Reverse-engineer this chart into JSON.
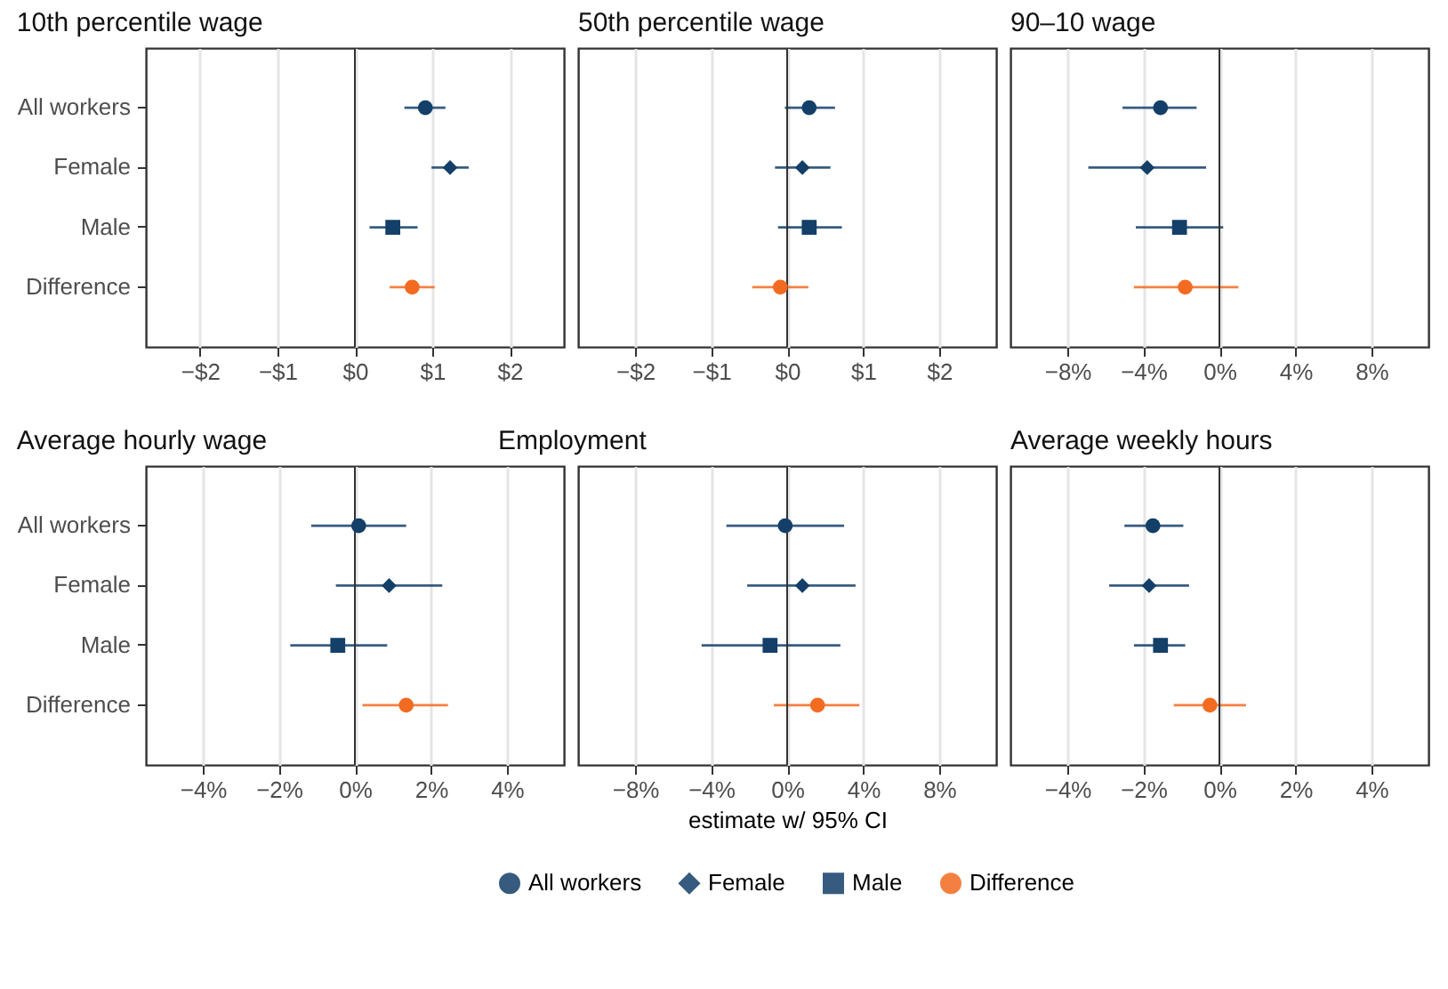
{
  "chart_data": [
    {
      "type": "scatter",
      "orientation": "horizontal",
      "title": "10th percentile wage",
      "categories": [
        "All workers",
        "Female",
        "Male",
        "Difference"
      ],
      "xlim": [
        -2.7,
        2.7
      ],
      "xticks": [
        {
          "value": -2,
          "label": "−$2"
        },
        {
          "value": -1,
          "label": "−$1"
        },
        {
          "value": 0,
          "label": "$0"
        },
        {
          "value": 1,
          "label": "$1"
        },
        {
          "value": 2,
          "label": "$2"
        }
      ],
      "grid": "x",
      "ref_lines": [
        {
          "axis": "x",
          "value": 0
        }
      ],
      "series": [
        {
          "color": "#133f68",
          "marker": "circle",
          "values": [
            0.91,
            null,
            null,
            null
          ],
          "errors": [
            [
              0.64,
              1.17
            ],
            null,
            null,
            null
          ]
        },
        {
          "color": "#133f68",
          "marker": "diamond",
          "values": [
            null,
            1.23,
            null,
            null
          ],
          "errors": [
            null,
            [
              0.99,
              1.47
            ],
            null,
            null
          ]
        },
        {
          "color": "#133f68",
          "marker": "square",
          "values": [
            null,
            null,
            0.49,
            null
          ],
          "errors": [
            null,
            null,
            [
              0.19,
              0.81
            ],
            null
          ]
        },
        {
          "color": "#f26b21",
          "marker": "circle",
          "values": [
            null,
            null,
            null,
            0.74
          ],
          "errors": [
            null,
            null,
            null,
            [
              0.45,
              1.03
            ]
          ]
        }
      ]
    },
    {
      "type": "scatter",
      "orientation": "horizontal",
      "title": "50th percentile wage",
      "categories": [
        null,
        null,
        null,
        null
      ],
      "xlim": [
        -2.75,
        2.75
      ],
      "xticks": [
        {
          "value": -2,
          "label": "−$2"
        },
        {
          "value": -1,
          "label": "−$1"
        },
        {
          "value": 0,
          "label": "$0"
        },
        {
          "value": 1,
          "label": "$1"
        },
        {
          "value": 2,
          "label": "$2"
        }
      ],
      "grid": "x",
      "tick_labels": "x",
      "ref_lines": [
        {
          "axis": "x",
          "value": 0
        }
      ],
      "series": [
        {
          "color": "#133f68",
          "marker": "circle",
          "values": [
            0.29,
            null,
            null,
            null
          ],
          "errors": [
            [
              -0.03,
              0.63
            ],
            null,
            null,
            null
          ]
        },
        {
          "color": "#133f68",
          "marker": "diamond",
          "values": [
            null,
            0.2,
            null,
            null
          ],
          "errors": [
            null,
            [
              -0.16,
              0.57
            ],
            null,
            null
          ]
        },
        {
          "color": "#133f68",
          "marker": "square",
          "values": [
            null,
            null,
            0.29,
            null
          ],
          "errors": [
            null,
            null,
            [
              -0.12,
              0.72
            ],
            null
          ]
        },
        {
          "color": "#f26b21",
          "marker": "circle",
          "values": [
            null,
            null,
            null,
            -0.09
          ],
          "errors": [
            null,
            null,
            null,
            [
              -0.46,
              0.28
            ]
          ]
        }
      ]
    },
    {
      "type": "scatter",
      "orientation": "horizontal",
      "title": "90–10 wage",
      "categories": [
        null,
        null,
        null,
        null
      ],
      "xlim": [
        -11,
        11
      ],
      "xticks": [
        {
          "value": -8,
          "label": "−8%"
        },
        {
          "value": -4,
          "label": "−4%"
        },
        {
          "value": 0,
          "label": "0%"
        },
        {
          "value": 4,
          "label": "4%"
        },
        {
          "value": 8,
          "label": "8%"
        }
      ],
      "grid": "x",
      "tick_labels": "x",
      "ref_lines": [
        {
          "axis": "x",
          "value": 0
        }
      ],
      "series": [
        {
          "color": "#133f68",
          "marker": "circle",
          "values": [
            -3.1,
            null,
            null,
            null
          ],
          "errors": [
            [
              -5.1,
              -1.2
            ],
            null,
            null,
            null
          ]
        },
        {
          "color": "#133f68",
          "marker": "diamond",
          "values": [
            null,
            -3.8,
            null,
            null
          ],
          "errors": [
            null,
            [
              -6.9,
              -0.7
            ],
            null,
            null
          ]
        },
        {
          "color": "#133f68",
          "marker": "square",
          "values": [
            null,
            null,
            -2.1,
            null
          ],
          "errors": [
            null,
            null,
            [
              -4.4,
              0.2
            ],
            null
          ]
        },
        {
          "color": "#f26b21",
          "marker": "circle",
          "values": [
            null,
            null,
            null,
            -1.8
          ],
          "errors": [
            null,
            null,
            null,
            [
              -4.5,
              1.0
            ]
          ]
        }
      ]
    },
    {
      "type": "scatter",
      "orientation": "horizontal",
      "title": "Average hourly wage",
      "categories": [
        "All workers",
        "Female",
        "Male",
        "Difference"
      ],
      "xlim": [
        -5.5,
        5.5
      ],
      "xticks": [
        {
          "value": -4,
          "label": "−4%"
        },
        {
          "value": -2,
          "label": "−2%"
        },
        {
          "value": 0,
          "label": "0%"
        },
        {
          "value": 2,
          "label": "2%"
        },
        {
          "value": 4,
          "label": "4%"
        }
      ],
      "grid": "x",
      "ref_lines": [
        {
          "axis": "x",
          "value": 0
        }
      ],
      "series": [
        {
          "color": "#133f68",
          "marker": "circle",
          "values": [
            0.1,
            null,
            null,
            null
          ],
          "errors": [
            [
              -1.15,
              1.35
            ],
            null,
            null,
            null
          ]
        },
        {
          "color": "#133f68",
          "marker": "diamond",
          "values": [
            null,
            0.9,
            null,
            null
          ],
          "errors": [
            null,
            [
              -0.5,
              2.3
            ],
            null,
            null
          ]
        },
        {
          "color": "#133f68",
          "marker": "square",
          "values": [
            null,
            null,
            -0.45,
            null
          ],
          "errors": [
            null,
            null,
            [
              -1.7,
              0.85
            ],
            null
          ]
        },
        {
          "color": "#f26b21",
          "marker": "circle",
          "values": [
            null,
            null,
            null,
            1.35
          ],
          "errors": [
            null,
            null,
            null,
            [
              0.2,
              2.45
            ]
          ]
        }
      ]
    },
    {
      "type": "scatter",
      "orientation": "horizontal",
      "title": "Employment",
      "xlabel": "estimate w/ 95% CI",
      "categories": [
        null,
        null,
        null,
        null
      ],
      "xlim": [
        -11,
        11
      ],
      "xticks": [
        {
          "value": -8,
          "label": "−8%"
        },
        {
          "value": -4,
          "label": "−4%"
        },
        {
          "value": 0,
          "label": "0%"
        },
        {
          "value": 4,
          "label": "4%"
        },
        {
          "value": 8,
          "label": "8%"
        }
      ],
      "grid": "x",
      "legend": "bottom",
      "tick_labels": "x",
      "ref_lines": [
        {
          "axis": "x",
          "value": 0
        }
      ],
      "series": [
        {
          "name": "All workers",
          "color": "#133f68",
          "marker": "circle",
          "values": [
            -0.1,
            null,
            null,
            null
          ],
          "errors": [
            [
              -3.2,
              3.0
            ],
            null,
            null,
            null
          ]
        },
        {
          "name": "Female",
          "color": "#133f68",
          "marker": "diamond",
          "values": [
            null,
            0.8,
            null,
            null
          ],
          "errors": [
            null,
            [
              -2.1,
              3.6
            ],
            null,
            null
          ]
        },
        {
          "name": "Male",
          "color": "#133f68",
          "marker": "square",
          "values": [
            null,
            null,
            -0.9,
            null
          ],
          "errors": [
            null,
            null,
            [
              -4.5,
              2.8
            ],
            null
          ]
        },
        {
          "name": "Difference",
          "color": "#f26b21",
          "marker": "circle",
          "values": [
            null,
            null,
            null,
            1.6
          ],
          "errors": [
            null,
            null,
            null,
            [
              -0.7,
              3.8
            ]
          ]
        }
      ]
    },
    {
      "type": "scatter",
      "orientation": "horizontal",
      "title": "Average weekly hours",
      "categories": [
        null,
        null,
        null,
        null
      ],
      "xlim": [
        -5.5,
        5.5
      ],
      "xticks": [
        {
          "value": -4,
          "label": "−4%"
        },
        {
          "value": -2,
          "label": "−2%"
        },
        {
          "value": 0,
          "label": "0%"
        },
        {
          "value": 2,
          "label": "2%"
        },
        {
          "value": 4,
          "label": "4%"
        }
      ],
      "grid": "x",
      "tick_labels": "x",
      "ref_lines": [
        {
          "axis": "x",
          "value": 0
        }
      ],
      "series": [
        {
          "color": "#133f68",
          "marker": "circle",
          "values": [
            -1.75,
            null,
            null,
            null
          ],
          "errors": [
            [
              -2.5,
              -0.95
            ],
            null,
            null,
            null
          ]
        },
        {
          "color": "#133f68",
          "marker": "diamond",
          "values": [
            null,
            -1.85,
            null,
            null
          ],
          "errors": [
            null,
            [
              -2.9,
              -0.8
            ],
            null,
            null
          ]
        },
        {
          "color": "#133f68",
          "marker": "square",
          "values": [
            null,
            null,
            -1.55,
            null
          ],
          "errors": [
            null,
            null,
            [
              -2.25,
              -0.9
            ],
            null
          ]
        },
        {
          "color": "#f26b21",
          "marker": "circle",
          "values": [
            null,
            null,
            null,
            -0.25
          ],
          "errors": [
            null,
            null,
            null,
            [
              -1.2,
              0.7
            ]
          ]
        }
      ]
    }
  ]
}
